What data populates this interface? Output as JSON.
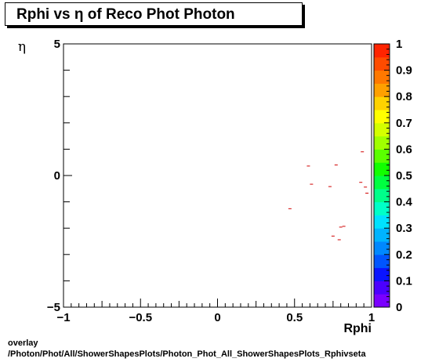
{
  "chart_data": {
    "type": "scatter",
    "title": "Rphi vs  η of Reco Phot Photon",
    "xlabel": "Rphi",
    "ylabel": "η",
    "xlim": [
      -1,
      1
    ],
    "ylim": [
      -5,
      5
    ],
    "x_ticks": [
      "−1",
      "−0.5",
      "0",
      "0.5",
      "1"
    ],
    "y_ticks": [
      "−5",
      "0",
      "5"
    ],
    "colorbar": {
      "range": [
        0,
        1
      ],
      "ticks": [
        "0",
        "0.1",
        "0.2",
        "0.3",
        "0.4",
        "0.5",
        "0.6",
        "0.7",
        "0.8",
        "0.9",
        "1"
      ]
    },
    "points": [
      {
        "x": 0.94,
        "y": 0.9
      },
      {
        "x": 0.59,
        "y": 0.36
      },
      {
        "x": 0.77,
        "y": 0.4
      },
      {
        "x": 0.61,
        "y": -0.33
      },
      {
        "x": 0.73,
        "y": -0.42
      },
      {
        "x": 0.93,
        "y": -0.26
      },
      {
        "x": 0.96,
        "y": -0.44
      },
      {
        "x": 0.97,
        "y": -0.67
      },
      {
        "x": 0.47,
        "y": -1.26
      },
      {
        "x": 0.82,
        "y": -1.93
      },
      {
        "x": 0.8,
        "y": -1.96
      },
      {
        "x": 0.75,
        "y": -2.3
      },
      {
        "x": 0.79,
        "y": -2.44
      }
    ],
    "grid": false,
    "legend": "none"
  },
  "footer": {
    "line1": "overlay",
    "line2": "/Photon/Phot/All/ShowerShapesPlots/Photon_Phot_All_ShowerShapesPlots_Rphivseta"
  }
}
